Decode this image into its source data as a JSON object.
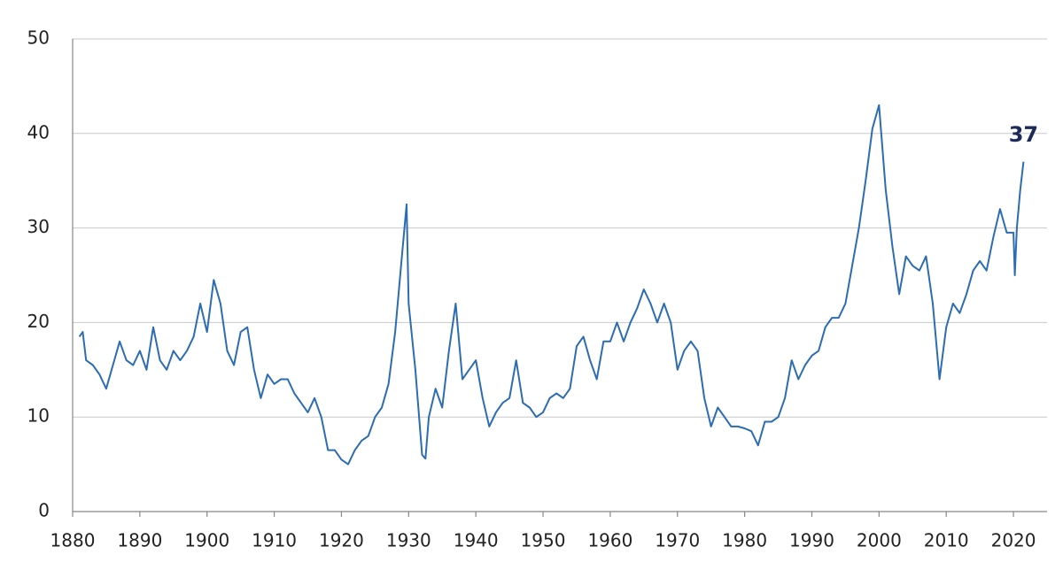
{
  "chart_data": {
    "type": "line",
    "color": "#2b6cb3",
    "label_color": "#1c2a5a",
    "x": [
      1881,
      1881.5,
      1882,
      1883,
      1884,
      1885,
      1886,
      1887,
      1888,
      1889,
      1890,
      1891,
      1892,
      1893,
      1894,
      1895,
      1896,
      1897,
      1898,
      1899,
      1900,
      1901,
      1902,
      1903,
      1904,
      1905,
      1906,
      1907,
      1908,
      1909,
      1910,
      1911,
      1912,
      1913,
      1914,
      1915,
      1916,
      1917,
      1918,
      1919,
      1920,
      1921,
      1922,
      1923,
      1924,
      1925,
      1926,
      1927,
      1928,
      1929,
      1929.7,
      1930,
      1931,
      1932,
      1932.5,
      1933,
      1934,
      1935,
      1936,
      1937,
      1938,
      1939,
      1940,
      1941,
      1942,
      1943,
      1944,
      1945,
      1946,
      1947,
      1948,
      1949,
      1950,
      1951,
      1952,
      1953,
      1954,
      1955,
      1956,
      1957,
      1958,
      1959,
      1960,
      1961,
      1962,
      1963,
      1964,
      1965,
      1966,
      1967,
      1968,
      1969,
      1970,
      1971,
      1972,
      1973,
      1974,
      1975,
      1976,
      1977,
      1978,
      1979,
      1980,
      1981,
      1982,
      1983,
      1984,
      1985,
      1986,
      1987,
      1988,
      1989,
      1990,
      1991,
      1992,
      1993,
      1994,
      1995,
      1996,
      1997,
      1998,
      1999,
      2000,
      2001,
      2002,
      2003,
      2004,
      2005,
      2006,
      2007,
      2008,
      2009,
      2010,
      2011,
      2012,
      2013,
      2014,
      2015,
      2016,
      2017,
      2018,
      2019,
      2020,
      2020.2,
      2020.5,
      2021,
      2021.5
    ],
    "values": [
      18.5,
      19,
      16,
      15.5,
      14.5,
      13,
      15.5,
      18,
      16,
      15.5,
      17,
      15,
      19.5,
      16,
      15,
      17,
      16,
      17,
      18.5,
      22,
      19,
      24.5,
      22,
      17,
      15.5,
      19,
      19.5,
      15,
      12,
      14.5,
      13.5,
      14,
      14,
      12.5,
      11.5,
      10.5,
      12,
      10,
      6.5,
      6.5,
      5.5,
      5,
      6.5,
      7.5,
      8,
      10,
      11,
      13.5,
      19,
      27,
      32.5,
      22,
      15,
      6,
      5.6,
      10,
      13,
      11,
      17,
      22,
      14,
      15,
      16,
      12,
      9,
      10.5,
      11.5,
      12,
      16,
      11.5,
      11,
      10,
      10.5,
      12,
      12.5,
      12,
      13,
      17.5,
      18.5,
      16,
      14,
      18,
      18,
      20,
      18,
      20,
      21.5,
      23.5,
      22,
      20,
      22,
      20,
      15,
      17,
      18,
      17,
      12,
      9,
      11,
      10,
      9,
      9,
      8.8,
      8.5,
      7,
      9.5,
      9.5,
      10,
      12,
      16,
      14,
      15.5,
      16.5,
      17,
      19.5,
      20.5,
      20.5,
      22,
      26,
      30,
      35,
      40.5,
      43,
      34,
      28,
      23,
      27,
      26,
      25.5,
      27,
      22,
      14,
      19.5,
      22,
      21,
      23,
      25.5,
      26.5,
      25.5,
      29,
      32,
      29.5,
      29.5,
      25,
      30,
      34,
      37
    ],
    "xlim": [
      1880,
      2025
    ],
    "xticks": [
      1880,
      1890,
      1900,
      1910,
      1920,
      1930,
      1940,
      1950,
      1960,
      1970,
      1980,
      1990,
      2000,
      2010,
      2020
    ],
    "ylim": [
      0,
      50
    ],
    "yticks": [
      0,
      10,
      20,
      30,
      40,
      50
    ],
    "grid": true
  }
}
